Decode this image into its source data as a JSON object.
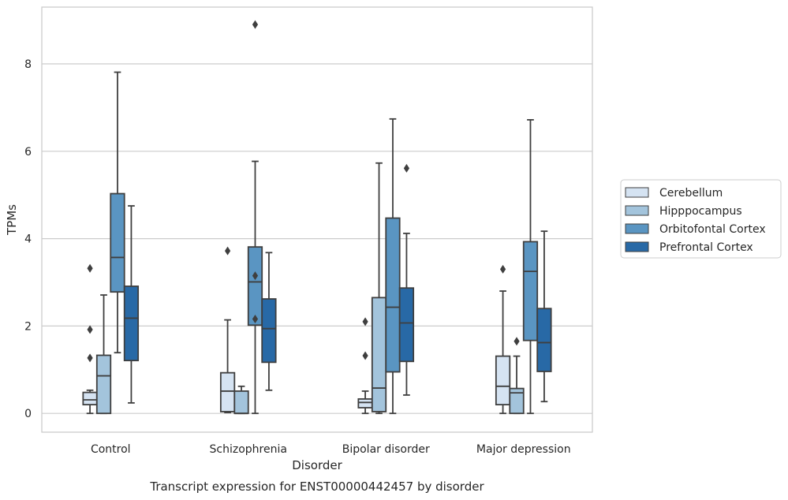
{
  "caption": "Transcript expression for ENST00000442457 by disorder",
  "chart_data": {
    "type": "box",
    "xlabel": "Disorder",
    "ylabel": "TPMs",
    "ylim": [
      -0.43,
      9.3
    ],
    "yticks": [
      0,
      2,
      4,
      6,
      8
    ],
    "grid": "horizontal",
    "legend_placement": "right",
    "categories": [
      "Control",
      "Schizophrenia",
      "Bipolar disorder",
      "Major depression"
    ],
    "series": [
      {
        "name": "Cerebellum",
        "color": "#d5e3f2",
        "boxes": [
          {
            "whislo": 0.0,
            "q1": 0.2,
            "med": 0.31,
            "q3": 0.48,
            "whishi": 0.53,
            "fliers": [
              1.27,
              1.92,
              3.32
            ]
          },
          {
            "whislo": 0.02,
            "q1": 0.04,
            "med": 0.51,
            "q3": 0.93,
            "whishi": 2.14,
            "fliers": [
              3.72
            ]
          },
          {
            "whislo": 0.0,
            "q1": 0.13,
            "med": 0.25,
            "q3": 0.33,
            "whishi": 0.51,
            "fliers": [
              1.32,
              2.1
            ]
          },
          {
            "whislo": 0.0,
            "q1": 0.2,
            "med": 0.62,
            "q3": 1.31,
            "whishi": 2.8,
            "fliers": [
              3.3
            ]
          }
        ]
      },
      {
        "name": "Hipppocampus",
        "color": "#a3c4dc",
        "boxes": [
          {
            "whislo": 0.0,
            "q1": 0.0,
            "med": 0.86,
            "q3": 1.33,
            "whishi": 2.71,
            "fliers": []
          },
          {
            "whislo": 0.0,
            "q1": 0.0,
            "med": 0.0,
            "q3": 0.51,
            "whishi": 0.62,
            "fliers": []
          },
          {
            "whislo": 0.0,
            "q1": 0.04,
            "med": 0.58,
            "q3": 2.65,
            "whishi": 5.73,
            "fliers": []
          },
          {
            "whislo": 0.0,
            "q1": 0.0,
            "med": 0.47,
            "q3": 0.57,
            "whishi": 1.31,
            "fliers": [
              1.65
            ]
          }
        ]
      },
      {
        "name": "Orbitofontal Cortex",
        "color": "#5a95c2",
        "boxes": [
          {
            "whislo": 1.39,
            "q1": 2.78,
            "med": 3.57,
            "q3": 5.03,
            "whishi": 7.81,
            "fliers": []
          },
          {
            "whislo": 0.0,
            "q1": 2.02,
            "med": 3.01,
            "q3": 3.81,
            "whishi": 5.77,
            "fliers": [
              2.16,
              3.15,
              8.9
            ]
          },
          {
            "whislo": 0.0,
            "q1": 0.95,
            "med": 2.43,
            "q3": 4.47,
            "whishi": 6.74,
            "fliers": []
          },
          {
            "whislo": 0.0,
            "q1": 1.67,
            "med": 3.25,
            "q3": 3.93,
            "whishi": 6.72,
            "fliers": []
          }
        ]
      },
      {
        "name": "Prefrontal Cortex",
        "color": "#2869a6",
        "boxes": [
          {
            "whislo": 0.24,
            "q1": 1.21,
            "med": 2.18,
            "q3": 2.91,
            "whishi": 4.75,
            "fliers": []
          },
          {
            "whislo": 0.53,
            "q1": 1.17,
            "med": 1.94,
            "q3": 2.62,
            "whishi": 3.68,
            "fliers": []
          },
          {
            "whislo": 0.42,
            "q1": 1.19,
            "med": 2.07,
            "q3": 2.87,
            "whishi": 4.12,
            "fliers": [
              5.61
            ]
          },
          {
            "whislo": 0.27,
            "q1": 0.96,
            "med": 1.62,
            "q3": 2.4,
            "whishi": 4.17,
            "fliers": []
          }
        ]
      }
    ]
  }
}
